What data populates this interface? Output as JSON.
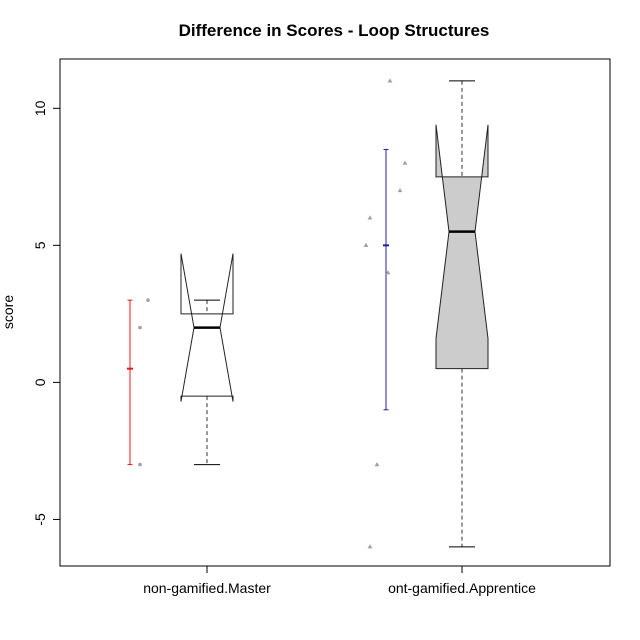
{
  "chart_data": {
    "type": "box",
    "title": "Difference in Scores - Loop Structures",
    "xlabel": "",
    "ylabel": "score",
    "ylim": [
      -6.7,
      11.8
    ],
    "yticks": [
      -5,
      0,
      5,
      10
    ],
    "ytick_labels": [
      "-5",
      "0",
      "5",
      "10"
    ],
    "categories": [
      "non-gamified.Master",
      "ont-gamified.Apprentice"
    ],
    "grid": false,
    "legend": "none",
    "boxes": [
      {
        "category": "non-gamified.Master",
        "whisker_low": -3,
        "q1": -0.5,
        "median": 2,
        "q3": 2.5,
        "whisker_high": 3,
        "notch_low": -0.7,
        "notch_high": 4.7,
        "fill": "#ffffff",
        "mean": 0.5,
        "ci_low": -3,
        "ci_high": 3,
        "ci_color": "#e41a1c",
        "points": [
          -3,
          2,
          3
        ],
        "point_color": "#a0a0a8"
      },
      {
        "category": "ont-gamified.Apprentice",
        "whisker_low": -6,
        "q1": 0.5,
        "median": 5.5,
        "q3": 7.5,
        "whisker_high": 11,
        "notch_low": 1.6,
        "notch_high": 9.4,
        "fill": "#cccccc",
        "mean": 5,
        "ci_low": -1,
        "ci_high": 8.5,
        "ci_color": "#2020a0",
        "points": [
          -6,
          -3,
          4,
          5,
          6,
          7,
          8,
          11
        ],
        "point_color": "#a0a0a8"
      }
    ]
  }
}
